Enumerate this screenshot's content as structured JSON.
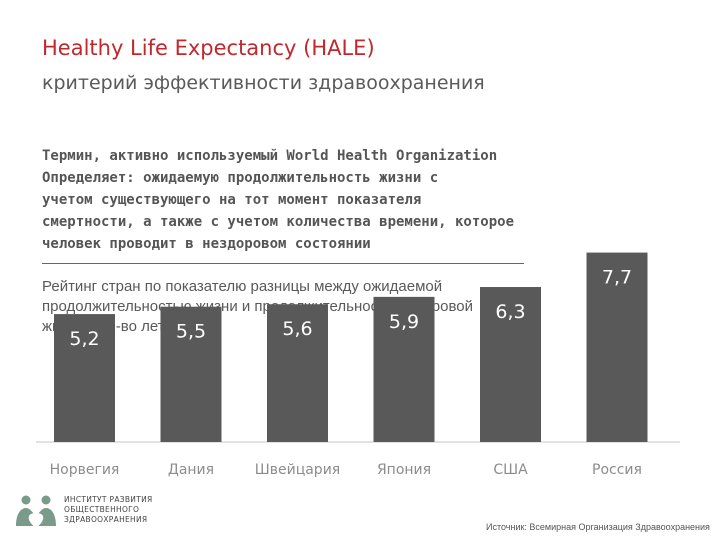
{
  "header": {
    "title": "Healthy Life Expectancy (HALE)",
    "subtitle": "критерий эффективности здравоохранения"
  },
  "description": {
    "lines": [
      "Термин, активно используемый World Health Organization",
      "Определяет: ожидаемую продолжительность жизни с",
      "учетом существующего на тот момент показателя",
      "смертности, а также с учетом количества времени, которое",
      "человек проводит в нездоровом состоянии"
    ]
  },
  "chart_caption": {
    "lines": [
      "Рейтинг стран по показателю разницы между ожидаемой",
      "продолжительностью жизни и продолжительностью здоровой",
      "жизни, кол-во лет"
    ]
  },
  "chart_data": {
    "type": "bar",
    "categories": [
      "Норвегия",
      "Дания",
      "Швейцария",
      "Япония",
      "США",
      "Россия"
    ],
    "values": [
      5.2,
      5.5,
      5.6,
      5.9,
      6.3,
      7.7
    ],
    "value_labels": [
      "5,2",
      "5,5",
      "5,6",
      "5,9",
      "6,3",
      "7,7"
    ],
    "title": "",
    "xlabel": "",
    "ylabel": "",
    "bar_color": "#595959",
    "label_color": "#ffffff",
    "grid": false,
    "legend": "none"
  },
  "footer": {
    "org_lines": [
      "ИНСТИТУТ РАЗВИТИЯ",
      "ОБЩЕСТВЕННОГО",
      "ЗДРАВООХРАНЕНИЯ"
    ],
    "source": "Источник: Всемирная Организация Здравоохранения"
  },
  "colors": {
    "title": "#c0282d",
    "divider": "#3b6fa5",
    "logo": "#7a9a8a"
  }
}
